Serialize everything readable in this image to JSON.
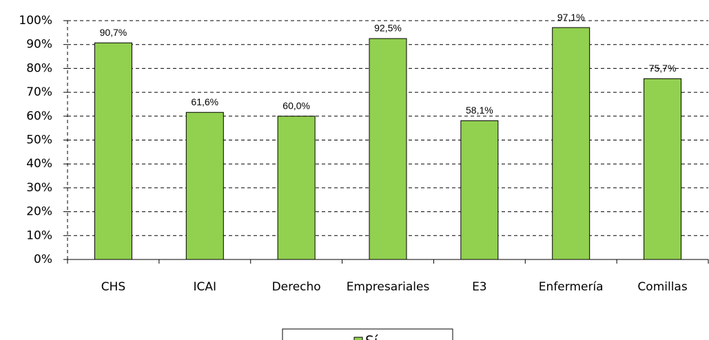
{
  "chart_data": {
    "type": "bar",
    "categories": [
      "CHS",
      "ICAI",
      "Derecho",
      "Empresariales",
      "E3",
      "Enfermería",
      "Comillas"
    ],
    "series": [
      {
        "name": "Sí",
        "color": "#92d050",
        "values": [
          90.7,
          61.6,
          60.0,
          92.5,
          58.1,
          97.1,
          75.7
        ],
        "value_labels": [
          "90,7%",
          "61,6%",
          "60,0%",
          "92,5%",
          "58,1%",
          "97,1%",
          "75,7%"
        ]
      }
    ],
    "ylim": [
      0,
      100
    ],
    "yticks": [
      {
        "value": 0,
        "label": "0%"
      },
      {
        "value": 10,
        "label": "10%"
      },
      {
        "value": 20,
        "label": "20%"
      },
      {
        "value": 30,
        "label": "30%"
      },
      {
        "value": 40,
        "label": "40%"
      },
      {
        "value": 50,
        "label": "50%"
      },
      {
        "value": 60,
        "label": "60%"
      },
      {
        "value": 70,
        "label": "70%"
      },
      {
        "value": 80,
        "label": "80%"
      },
      {
        "value": 90,
        "label": "90%"
      },
      {
        "value": 100,
        "label": "100%"
      }
    ],
    "grid": true,
    "legend": "bottom"
  }
}
